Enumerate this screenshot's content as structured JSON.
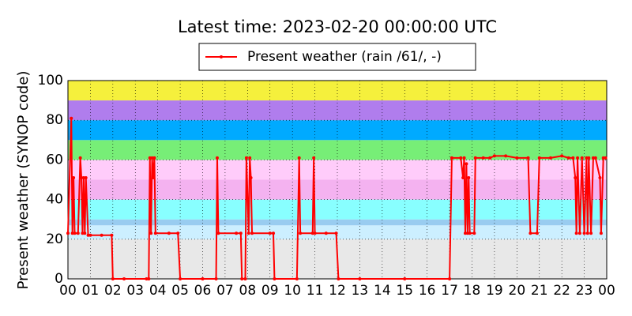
{
  "chart_data": {
    "type": "line",
    "title": "Latest time: 2023-02-20 00:00:00 UTC",
    "ylabel": "Present weather (SYNOP code)",
    "series": [
      {
        "name": "Present weather (rain /61/, -)",
        "color": "#ff0000",
        "x": [
          0,
          0.15,
          0.2,
          0.25,
          0.3,
          0.45,
          0.55,
          0.6,
          0.65,
          0.7,
          0.75,
          0.8,
          0.9,
          1.0,
          1.5,
          1.95,
          2.0,
          2.5,
          3.5,
          3.6,
          3.65,
          3.7,
          3.75,
          3.8,
          3.85,
          3.9,
          4.5,
          4.9,
          5.0,
          6.0,
          6.6,
          6.65,
          6.7,
          7.5,
          7.7,
          7.75,
          7.9,
          7.95,
          8.05,
          8.1,
          8.15,
          8.2,
          9.0,
          9.15,
          9.2,
          10.2,
          10.3,
          10.35,
          10.9,
          10.95,
          11.0,
          11.5,
          11.95,
          12.05,
          13,
          15,
          17.0,
          17.1,
          17.5,
          17.6,
          17.65,
          17.7,
          17.75,
          17.8,
          17.85,
          17.9,
          18.1,
          18.15,
          18.5,
          18.8,
          19,
          19.5,
          20,
          20.5,
          20.6,
          20.9,
          21,
          21.5,
          22,
          22.3,
          22.5,
          22.6,
          22.65,
          22.7,
          22.8,
          22.9,
          23.0,
          23.1,
          23.15,
          23.2,
          23.3,
          23.4,
          23.5,
          23.7,
          23.75,
          23.85,
          23.95
        ],
        "values": [
          23,
          81,
          23,
          51,
          23,
          23,
          61,
          51,
          23,
          51,
          23,
          51,
          22,
          22,
          22,
          22,
          0,
          0,
          0,
          0,
          61,
          23,
          61,
          51,
          61,
          23,
          23,
          23,
          0,
          0,
          0,
          61,
          23,
          23,
          23,
          0,
          0,
          61,
          23,
          61,
          51,
          23,
          23,
          23,
          0,
          0,
          61,
          23,
          23,
          61,
          23,
          23,
          23,
          0,
          0,
          0,
          0,
          61,
          61,
          51,
          61,
          23,
          58,
          23,
          51,
          23,
          23,
          61,
          61,
          61,
          62,
          62,
          61,
          61,
          23,
          23,
          61,
          61,
          62,
          61,
          61,
          51,
          23,
          61,
          23,
          61,
          23,
          61,
          23,
          61,
          23,
          61,
          61,
          51,
          23,
          61,
          61
        ]
      }
    ],
    "bands": [
      {
        "from": 0,
        "to": 20,
        "color": "#e8e8e8"
      },
      {
        "from": 20,
        "to": 27,
        "color": "#ccefff"
      },
      {
        "from": 27,
        "to": 30,
        "color": "#99ccf0"
      },
      {
        "from": 30,
        "to": 40,
        "color": "#88ffff"
      },
      {
        "from": 40,
        "to": 50,
        "color": "#f4b2f0"
      },
      {
        "from": 50,
        "to": 60,
        "color": "#ffccfa"
      },
      {
        "from": 60,
        "to": 70,
        "color": "#77ee77"
      },
      {
        "from": 70,
        "to": 80,
        "color": "#00aaff"
      },
      {
        "from": 80,
        "to": 90,
        "color": "#b07ded"
      },
      {
        "from": 90,
        "to": 100,
        "color": "#f5f03c"
      }
    ],
    "xlim": [
      0,
      24
    ],
    "xticks": [
      {
        "value": 0,
        "label": "00"
      },
      {
        "value": 1,
        "label": "01"
      },
      {
        "value": 2,
        "label": "02"
      },
      {
        "value": 3,
        "label": "03"
      },
      {
        "value": 4,
        "label": "04"
      },
      {
        "value": 5,
        "label": "05"
      },
      {
        "value": 6,
        "label": "06"
      },
      {
        "value": 7,
        "label": "07"
      },
      {
        "value": 8,
        "label": "08"
      },
      {
        "value": 9,
        "label": "09"
      },
      {
        "value": 10,
        "label": "10"
      },
      {
        "value": 11,
        "label": "11"
      },
      {
        "value": 12,
        "label": "12"
      },
      {
        "value": 13,
        "label": "13"
      },
      {
        "value": 14,
        "label": "14"
      },
      {
        "value": 15,
        "label": "15"
      },
      {
        "value": 16,
        "label": "16"
      },
      {
        "value": 17,
        "label": "17"
      },
      {
        "value": 18,
        "label": "18"
      },
      {
        "value": 19,
        "label": "19"
      },
      {
        "value": 20,
        "label": "20"
      },
      {
        "value": 21,
        "label": "21"
      },
      {
        "value": 22,
        "label": "22"
      },
      {
        "value": 23,
        "label": "23"
      },
      {
        "value": 24,
        "label": "00"
      }
    ],
    "ylim": [
      0,
      100
    ],
    "yticks": [
      0,
      20,
      40,
      60,
      80,
      100
    ],
    "grid": true
  }
}
